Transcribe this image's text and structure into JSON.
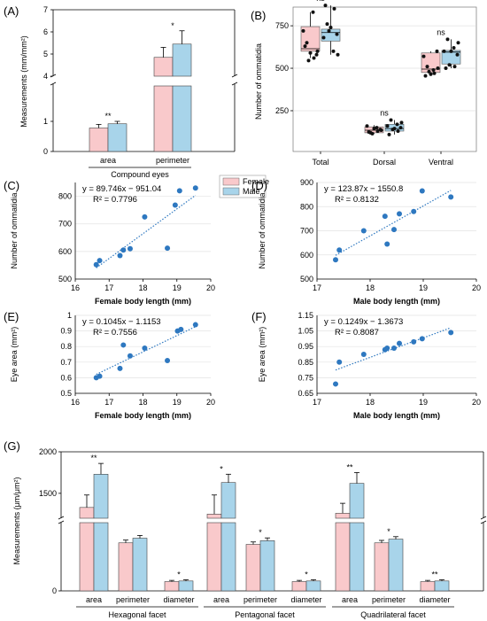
{
  "colors": {
    "female": "#f9c9cb",
    "male": "#a8d4ea",
    "scatter": "#2e78c0",
    "trend": "#2e78c0"
  },
  "legend": {
    "female": "Female",
    "male": "Male"
  },
  "chart_data": [
    {
      "panel": "(A)",
      "type": "bar",
      "categories": [
        "area",
        "perimeter"
      ],
      "group_label": "Compound eyes",
      "ylabel": "Measurements (mm/mm²)",
      "broken_axis": true,
      "ylim_lower": [
        0,
        1.5
      ],
      "ylim_upper": [
        4,
        7
      ],
      "yticks_lower": [
        "0",
        "1"
      ],
      "yticks_upper": [
        "4",
        "5",
        "6",
        "7"
      ],
      "series": [
        {
          "name": "Female",
          "values": [
            0.78,
            4.85
          ],
          "err": [
            0.12,
            0.45
          ]
        },
        {
          "name": "Male",
          "values": [
            0.92,
            5.45
          ],
          "err": [
            0.08,
            0.6
          ]
        }
      ],
      "significance": [
        "**",
        "*"
      ]
    },
    {
      "panel": "(B)",
      "type": "box",
      "categories": [
        "Total",
        "Dorsal",
        "Ventral"
      ],
      "ylabel": "Number of ommatidia",
      "ylim": [
        10,
        860
      ],
      "yticks": [
        "250",
        "500",
        "750"
      ],
      "series": [
        {
          "name": "Female",
          "boxes": [
            {
              "q1": 600,
              "median": 615,
              "q3": 745,
              "whisker_low": 560,
              "whisker_high": 830
            },
            {
              "q1": 120,
              "median": 135,
              "q3": 155,
              "whisker_low": 115,
              "whisker_high": 165
            },
            {
              "q1": 475,
              "median": 495,
              "q3": 590,
              "whisker_low": 455,
              "whisker_high": 600
            }
          ],
          "points": [
            [
              630,
              560,
              545,
              580,
              720,
              830,
              600,
              650,
              590
            ],
            [
              125,
              130,
              115,
              140,
              160,
              150,
              135,
              120,
              145
            ],
            [
              455,
              470,
              480,
              600,
              570,
              490,
              500,
              510,
              465
            ]
          ]
        },
        {
          "name": "Male",
          "boxes": [
            {
              "q1": 660,
              "median": 710,
              "q3": 730,
              "whisker_low": 580,
              "whisker_high": 870
            },
            {
              "q1": 130,
              "median": 145,
              "q3": 170,
              "whisker_low": 110,
              "whisker_high": 195
            },
            {
              "q1": 525,
              "median": 595,
              "q3": 605,
              "whisker_low": 500,
              "whisker_high": 670
            }
          ],
          "points": [
            [
              870,
              850,
              720,
              700,
              680,
              600,
              580,
              760,
              740
            ],
            [
              110,
              130,
              140,
              150,
              160,
              170,
              180,
              195,
              145
            ],
            [
              500,
              510,
              520,
              580,
              600,
              620,
              650,
              670,
              600
            ]
          ]
        }
      ],
      "significance": [
        "ns",
        "ns",
        "ns"
      ]
    },
    {
      "panel": "(C)",
      "type": "scatter",
      "xlabel": "Female body length (mm)",
      "ylabel": "Number of ommatidia",
      "xlim": [
        16,
        20
      ],
      "ylim": [
        500,
        850
      ],
      "xticks": [
        "16",
        "17",
        "18",
        "19",
        "20"
      ],
      "yticks": [
        "500",
        "600",
        "700",
        "800"
      ],
      "equation": "y = 89.746x − 951.04",
      "r2": "R² = 0.7796",
      "trend": [
        89.746,
        -951.04
      ],
      "points": [
        [
          16.62,
          552
        ],
        [
          16.72,
          567
        ],
        [
          17.32,
          585
        ],
        [
          17.42,
          605
        ],
        [
          17.62,
          610
        ],
        [
          18.05,
          725
        ],
        [
          18.72,
          612
        ],
        [
          18.95,
          768
        ],
        [
          19.08,
          820
        ],
        [
          19.55,
          830
        ]
      ]
    },
    {
      "panel": "(D)",
      "type": "scatter",
      "xlabel": "Male body length (mm)",
      "ylabel": "Number of ommatidia",
      "xlim": [
        17,
        20
      ],
      "ylim": [
        500,
        900
      ],
      "xticks": [
        "17",
        "18",
        "19",
        "20"
      ],
      "yticks": [
        "500",
        "600",
        "700",
        "800",
        "900"
      ],
      "equation": "y = 123.87x − 1550.8",
      "r2": "R² = 0.8132",
      "trend": [
        123.87,
        -1550.8
      ],
      "points": [
        [
          17.35,
          580
        ],
        [
          17.42,
          620
        ],
        [
          17.88,
          700
        ],
        [
          18.28,
          760
        ],
        [
          18.32,
          645
        ],
        [
          18.45,
          705
        ],
        [
          18.55,
          770
        ],
        [
          18.82,
          780
        ],
        [
          18.98,
          865
        ],
        [
          19.52,
          840
        ]
      ]
    },
    {
      "panel": "(E)",
      "type": "scatter",
      "xlabel": "Female body length (mm)",
      "ylabel": "Eye area (mm²)",
      "xlim": [
        16,
        20
      ],
      "ylim": [
        0.5,
        1.0
      ],
      "xticks": [
        "16",
        "17",
        "18",
        "19",
        "20"
      ],
      "yticks": [
        "0.5",
        "0.6",
        "0.7",
        "0.8",
        "0.9",
        "1"
      ],
      "equation": "y = 0.1045x − 1.1153",
      "r2": "R² = 0.7556",
      "trend": [
        0.1045,
        -1.1153
      ],
      "points": [
        [
          16.62,
          0.6
        ],
        [
          16.72,
          0.61
        ],
        [
          17.32,
          0.66
        ],
        [
          17.42,
          0.81
        ],
        [
          17.62,
          0.74
        ],
        [
          18.05,
          0.79
        ],
        [
          18.72,
          0.71
        ],
        [
          19.02,
          0.9
        ],
        [
          19.12,
          0.91
        ],
        [
          19.55,
          0.94
        ]
      ]
    },
    {
      "panel": "(F)",
      "type": "scatter",
      "xlabel": "Male body length (mm)",
      "ylabel": "Eye area (mm²)",
      "xlim": [
        17,
        20
      ],
      "ylim": [
        0.65,
        1.15
      ],
      "xticks": [
        "17",
        "18",
        "19",
        "20"
      ],
      "yticks": [
        "0.65",
        "0.75",
        "0.85",
        "0.95",
        "1.05",
        "1.15"
      ],
      "equation": "y = 0.1249x − 1.3673",
      "r2": "R² = 0.8087",
      "trend": [
        0.1249,
        -1.3673
      ],
      "points": [
        [
          17.35,
          0.71
        ],
        [
          17.42,
          0.85
        ],
        [
          17.88,
          0.9
        ],
        [
          18.28,
          0.93
        ],
        [
          18.32,
          0.94
        ],
        [
          18.45,
          0.94
        ],
        [
          18.55,
          0.97
        ],
        [
          18.82,
          0.98
        ],
        [
          18.98,
          1.0
        ],
        [
          19.52,
          1.04
        ]
      ]
    },
    {
      "panel": "(G)",
      "type": "bar",
      "ylabel": "Measurements (μm/μm²)",
      "broken_axis": true,
      "yticks": [
        "0",
        "1500",
        "2000"
      ],
      "groups": [
        "Hexagonal facet",
        "Pentagonal facet",
        "Quadrilateral facet"
      ],
      "categories": [
        "area",
        "perimeter",
        "diameter"
      ],
      "series": [
        {
          "name": "Female",
          "values": [
            [
              1330,
              155,
              30
            ],
            [
              1250,
              150,
              30
            ],
            [
              1260,
              155,
              30
            ]
          ],
          "err": [
            [
              150,
              6,
              1
            ],
            [
              230,
              5,
              1
            ],
            [
              120,
              5,
              1
            ]
          ]
        },
        {
          "name": "Male",
          "values": [
            [
              1730,
              170,
              32
            ],
            [
              1630,
              162,
              32
            ],
            [
              1620,
              167,
              32
            ]
          ],
          "err": [
            [
              130,
              6,
              1
            ],
            [
              100,
              6,
              1
            ],
            [
              130,
              5,
              1
            ]
          ]
        }
      ],
      "significance": [
        [
          "**",
          "",
          "*"
        ],
        [
          "*",
          "*",
          "*"
        ],
        [
          "**",
          "*",
          "**"
        ]
      ]
    }
  ]
}
